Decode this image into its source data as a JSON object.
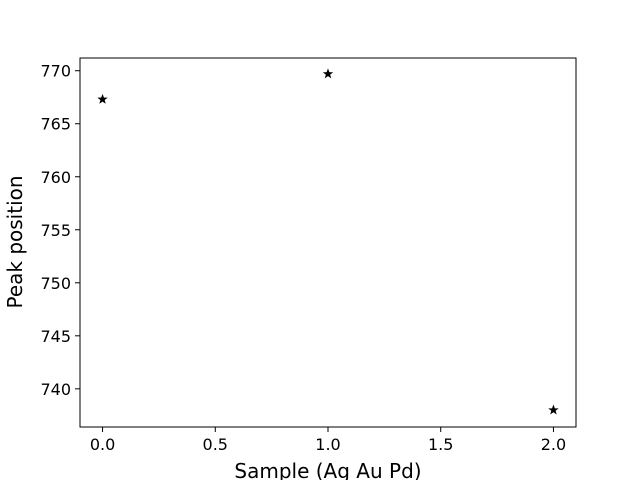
{
  "chart_data": {
    "type": "scatter",
    "title": "",
    "xlabel": "Sample (Ag Au Pd)",
    "ylabel": "Peak position",
    "xlim": [
      -0.1,
      2.1
    ],
    "ylim": [
      736.4,
      771.2
    ],
    "xticks": [
      0.0,
      0.5,
      1.0,
      1.5,
      2.0
    ],
    "xtick_labels": [
      "0.0",
      "0.5",
      "1.0",
      "1.5",
      "2.0"
    ],
    "yticks": [
      740,
      745,
      750,
      755,
      760,
      765,
      770
    ],
    "ytick_labels": [
      "740",
      "745",
      "750",
      "755",
      "760",
      "765",
      "770"
    ],
    "grid": false,
    "marker": "star",
    "series": [
      {
        "name": "Peak position",
        "color": "#000000",
        "x": [
          0,
          1,
          2
        ],
        "y": [
          767.3,
          769.7,
          738.0
        ]
      }
    ]
  }
}
